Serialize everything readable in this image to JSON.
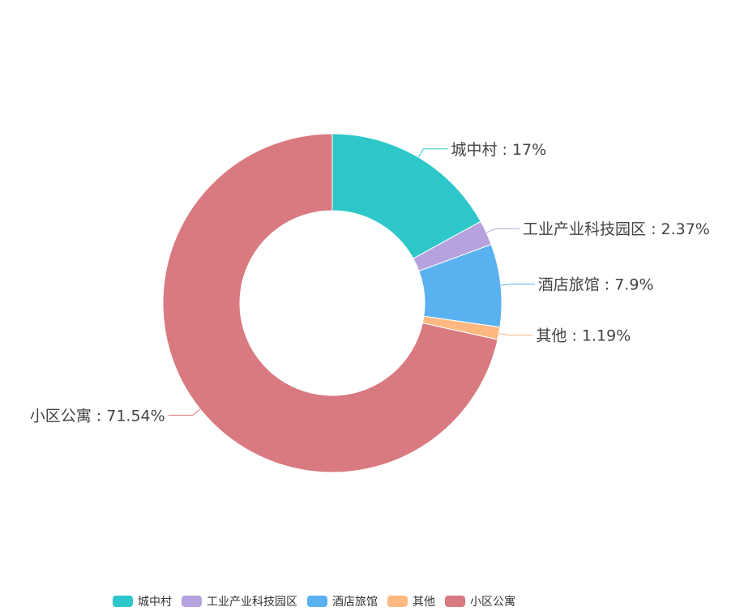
{
  "chart_data": {
    "type": "pie",
    "variant": "donut",
    "categories": [
      "城中村",
      "工业产业科技园区",
      "酒店旅馆",
      "其他",
      "小区公寓"
    ],
    "values": [
      17,
      2.37,
      7.9,
      1.19,
      71.54
    ],
    "unit": "%",
    "labels": [
      "城中村 : 17%",
      "工业产业科技园区 : 2.37%",
      "酒店旅馆 : 7.9%",
      "其他 : 1.19%",
      "小区公寓 : 71.54%"
    ],
    "colors": [
      "#2ec7c9",
      "#b6a2de",
      "#5ab1ef",
      "#ffb980",
      "#d87a80"
    ],
    "legend_position": "bottom",
    "start": "top, clockwise"
  }
}
